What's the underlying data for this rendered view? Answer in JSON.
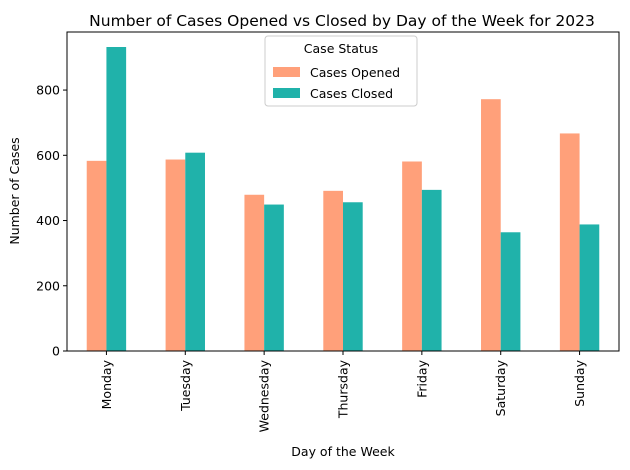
{
  "chart_data": {
    "type": "bar",
    "title": "Number of Cases Opened vs Closed by Day of the Week for 2023",
    "xlabel": "Day of the Week",
    "ylabel": "Number of Cases",
    "categories": [
      "Monday",
      "Tuesday",
      "Wednesday",
      "Thursday",
      "Friday",
      "Saturday",
      "Sunday"
    ],
    "series": [
      {
        "name": "Cases Opened",
        "color": "#FFA07A",
        "values": [
          583,
          587,
          479,
          491,
          581,
          772,
          667
        ]
      },
      {
        "name": "Cases Closed",
        "color": "#20B2AA",
        "values": [
          932,
          608,
          449,
          456,
          494,
          364,
          388
        ]
      }
    ],
    "ylim": [
      0,
      978
    ],
    "yticks": [
      0,
      200,
      400,
      600,
      800
    ],
    "legend": {
      "title": "Case Status",
      "placement": "upper-center"
    },
    "grid": false
  }
}
